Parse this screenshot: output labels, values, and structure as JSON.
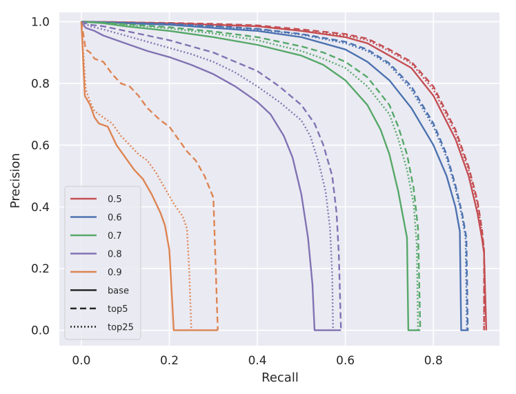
{
  "chart_data": {
    "type": "line",
    "title": "",
    "xlabel": "Recall",
    "ylabel": "Precision",
    "xlim": [
      -0.05,
      0.95
    ],
    "ylim": [
      -0.05,
      1.03
    ],
    "xticks": [
      "0.0",
      "0.2",
      "0.4",
      "0.6",
      "0.8"
    ],
    "yticks": [
      "0.0",
      "0.2",
      "0.4",
      "0.6",
      "0.8",
      "1.0"
    ],
    "grid": true,
    "legend_position": "lower-left",
    "legend": {
      "thresholds": [
        {
          "label": "0.5",
          "color": "#c44e52"
        },
        {
          "label": "0.6",
          "color": "#4c72b0"
        },
        {
          "label": "0.7",
          "color": "#55a868"
        },
        {
          "label": "0.8",
          "color": "#8172b3"
        },
        {
          "label": "0.9",
          "color": "#dd8452"
        }
      ],
      "styles": [
        {
          "label": "base",
          "dash": "solid"
        },
        {
          "label": "top5",
          "dash": "dashed"
        },
        {
          "label": "top25",
          "dash": "dotted"
        }
      ]
    },
    "series": [
      {
        "name": "0.5 base",
        "threshold": "0.5",
        "style": "base",
        "color": "#c44e52",
        "points": [
          [
            0.0,
            1.0
          ],
          [
            0.1,
            0.998
          ],
          [
            0.2,
            0.995
          ],
          [
            0.3,
            0.99
          ],
          [
            0.4,
            0.985
          ],
          [
            0.5,
            0.97
          ],
          [
            0.6,
            0.95
          ],
          [
            0.65,
            0.93
          ],
          [
            0.7,
            0.89
          ],
          [
            0.75,
            0.85
          ],
          [
            0.8,
            0.76
          ],
          [
            0.85,
            0.62
          ],
          [
            0.88,
            0.5
          ],
          [
            0.9,
            0.38
          ],
          [
            0.91,
            0.3
          ],
          [
            0.915,
            0.25
          ],
          [
            0.92,
            0.0
          ]
        ]
      },
      {
        "name": "0.5 top5",
        "threshold": "0.5",
        "style": "top5",
        "color": "#c44e52",
        "points": [
          [
            0.0,
            1.0
          ],
          [
            0.1,
            0.998
          ],
          [
            0.2,
            0.996
          ],
          [
            0.3,
            0.993
          ],
          [
            0.4,
            0.988
          ],
          [
            0.5,
            0.975
          ],
          [
            0.6,
            0.96
          ],
          [
            0.65,
            0.945
          ],
          [
            0.7,
            0.91
          ],
          [
            0.75,
            0.87
          ],
          [
            0.8,
            0.79
          ],
          [
            0.85,
            0.65
          ],
          [
            0.88,
            0.53
          ],
          [
            0.9,
            0.42
          ],
          [
            0.91,
            0.33
          ],
          [
            0.915,
            0.26
          ],
          [
            0.915,
            0.0
          ]
        ]
      },
      {
        "name": "0.5 top25",
        "threshold": "0.5",
        "style": "top25",
        "color": "#c44e52",
        "points": [
          [
            0.0,
            1.0
          ],
          [
            0.1,
            0.998
          ],
          [
            0.2,
            0.995
          ],
          [
            0.3,
            0.99
          ],
          [
            0.4,
            0.985
          ],
          [
            0.5,
            0.97
          ],
          [
            0.6,
            0.955
          ],
          [
            0.65,
            0.94
          ],
          [
            0.7,
            0.905
          ],
          [
            0.75,
            0.865
          ],
          [
            0.8,
            0.78
          ],
          [
            0.85,
            0.64
          ],
          [
            0.88,
            0.52
          ],
          [
            0.9,
            0.41
          ],
          [
            0.91,
            0.32
          ],
          [
            0.915,
            0.26
          ],
          [
            0.915,
            0.0
          ]
        ]
      },
      {
        "name": "0.6 base",
        "threshold": "0.6",
        "style": "base",
        "color": "#4c72b0",
        "points": [
          [
            0.0,
            1.0
          ],
          [
            0.1,
            0.995
          ],
          [
            0.2,
            0.99
          ],
          [
            0.3,
            0.98
          ],
          [
            0.4,
            0.97
          ],
          [
            0.5,
            0.95
          ],
          [
            0.6,
            0.91
          ],
          [
            0.65,
            0.87
          ],
          [
            0.7,
            0.81
          ],
          [
            0.75,
            0.72
          ],
          [
            0.8,
            0.6
          ],
          [
            0.83,
            0.5
          ],
          [
            0.85,
            0.4
          ],
          [
            0.86,
            0.32
          ],
          [
            0.863,
            0.0
          ],
          [
            0.88,
            0.0
          ]
        ]
      },
      {
        "name": "0.6 top5",
        "threshold": "0.6",
        "style": "top5",
        "color": "#4c72b0",
        "points": [
          [
            0.0,
            1.0
          ],
          [
            0.1,
            0.997
          ],
          [
            0.2,
            0.993
          ],
          [
            0.3,
            0.986
          ],
          [
            0.4,
            0.977
          ],
          [
            0.5,
            0.96
          ],
          [
            0.6,
            0.935
          ],
          [
            0.65,
            0.91
          ],
          [
            0.7,
            0.865
          ],
          [
            0.75,
            0.79
          ],
          [
            0.8,
            0.67
          ],
          [
            0.83,
            0.57
          ],
          [
            0.85,
            0.47
          ],
          [
            0.865,
            0.38
          ],
          [
            0.875,
            0.3
          ],
          [
            0.878,
            0.0
          ]
        ]
      },
      {
        "name": "0.6 top25",
        "threshold": "0.6",
        "style": "top25",
        "color": "#4c72b0",
        "points": [
          [
            0.0,
            1.0
          ],
          [
            0.1,
            0.996
          ],
          [
            0.2,
            0.992
          ],
          [
            0.3,
            0.984
          ],
          [
            0.4,
            0.975
          ],
          [
            0.5,
            0.958
          ],
          [
            0.6,
            0.93
          ],
          [
            0.65,
            0.905
          ],
          [
            0.7,
            0.86
          ],
          [
            0.75,
            0.78
          ],
          [
            0.8,
            0.66
          ],
          [
            0.83,
            0.56
          ],
          [
            0.85,
            0.46
          ],
          [
            0.865,
            0.37
          ],
          [
            0.873,
            0.3
          ],
          [
            0.876,
            0.0
          ]
        ]
      },
      {
        "name": "0.7 base",
        "threshold": "0.7",
        "style": "base",
        "color": "#55a868",
        "points": [
          [
            0.0,
            1.0
          ],
          [
            0.05,
            0.995
          ],
          [
            0.1,
            0.985
          ],
          [
            0.2,
            0.97
          ],
          [
            0.3,
            0.95
          ],
          [
            0.4,
            0.925
          ],
          [
            0.5,
            0.89
          ],
          [
            0.55,
            0.86
          ],
          [
            0.6,
            0.81
          ],
          [
            0.65,
            0.73
          ],
          [
            0.68,
            0.65
          ],
          [
            0.7,
            0.57
          ],
          [
            0.72,
            0.45
          ],
          [
            0.74,
            0.3
          ],
          [
            0.743,
            0.0
          ],
          [
            0.77,
            0.0
          ]
        ]
      },
      {
        "name": "0.7 top5",
        "threshold": "0.7",
        "style": "top5",
        "color": "#55a868",
        "points": [
          [
            0.0,
            1.0
          ],
          [
            0.05,
            0.997
          ],
          [
            0.1,
            0.992
          ],
          [
            0.2,
            0.982
          ],
          [
            0.3,
            0.968
          ],
          [
            0.4,
            0.95
          ],
          [
            0.5,
            0.92
          ],
          [
            0.55,
            0.9
          ],
          [
            0.6,
            0.87
          ],
          [
            0.65,
            0.82
          ],
          [
            0.7,
            0.73
          ],
          [
            0.72,
            0.66
          ],
          [
            0.74,
            0.57
          ],
          [
            0.755,
            0.46
          ],
          [
            0.765,
            0.33
          ],
          [
            0.77,
            0.0
          ]
        ]
      },
      {
        "name": "0.7 top25",
        "threshold": "0.7",
        "style": "top25",
        "color": "#55a868",
        "points": [
          [
            0.0,
            1.0
          ],
          [
            0.05,
            0.996
          ],
          [
            0.1,
            0.99
          ],
          [
            0.2,
            0.978
          ],
          [
            0.3,
            0.962
          ],
          [
            0.4,
            0.94
          ],
          [
            0.5,
            0.905
          ],
          [
            0.55,
            0.88
          ],
          [
            0.6,
            0.85
          ],
          [
            0.65,
            0.79
          ],
          [
            0.7,
            0.7
          ],
          [
            0.72,
            0.62
          ],
          [
            0.74,
            0.52
          ],
          [
            0.755,
            0.41
          ],
          [
            0.762,
            0.28
          ],
          [
            0.765,
            0.0
          ]
        ]
      },
      {
        "name": "0.8 base",
        "threshold": "0.8",
        "style": "base",
        "color": "#8172b3",
        "points": [
          [
            0.0,
            1.0
          ],
          [
            0.01,
            0.98
          ],
          [
            0.03,
            0.97
          ],
          [
            0.05,
            0.955
          ],
          [
            0.1,
            0.93
          ],
          [
            0.15,
            0.905
          ],
          [
            0.2,
            0.885
          ],
          [
            0.25,
            0.86
          ],
          [
            0.3,
            0.83
          ],
          [
            0.35,
            0.79
          ],
          [
            0.4,
            0.74
          ],
          [
            0.43,
            0.7
          ],
          [
            0.46,
            0.63
          ],
          [
            0.48,
            0.56
          ],
          [
            0.5,
            0.44
          ],
          [
            0.515,
            0.3
          ],
          [
            0.525,
            0.15
          ],
          [
            0.53,
            0.0
          ],
          [
            0.59,
            0.0
          ]
        ]
      },
      {
        "name": "0.8 top5",
        "threshold": "0.8",
        "style": "top5",
        "color": "#8172b3",
        "points": [
          [
            0.0,
            1.0
          ],
          [
            0.02,
            0.99
          ],
          [
            0.05,
            0.985
          ],
          [
            0.1,
            0.97
          ],
          [
            0.15,
            0.955
          ],
          [
            0.2,
            0.94
          ],
          [
            0.25,
            0.92
          ],
          [
            0.3,
            0.9
          ],
          [
            0.35,
            0.87
          ],
          [
            0.4,
            0.84
          ],
          [
            0.45,
            0.79
          ],
          [
            0.5,
            0.73
          ],
          [
            0.53,
            0.67
          ],
          [
            0.55,
            0.6
          ],
          [
            0.57,
            0.5
          ],
          [
            0.58,
            0.38
          ],
          [
            0.585,
            0.25
          ],
          [
            0.59,
            0.0
          ]
        ]
      },
      {
        "name": "0.8 top25",
        "threshold": "0.8",
        "style": "top25",
        "color": "#8172b3",
        "points": [
          [
            0.0,
            1.0
          ],
          [
            0.02,
            0.985
          ],
          [
            0.05,
            0.975
          ],
          [
            0.1,
            0.955
          ],
          [
            0.15,
            0.935
          ],
          [
            0.2,
            0.915
          ],
          [
            0.25,
            0.895
          ],
          [
            0.3,
            0.87
          ],
          [
            0.35,
            0.835
          ],
          [
            0.4,
            0.79
          ],
          [
            0.45,
            0.74
          ],
          [
            0.5,
            0.68
          ],
          [
            0.52,
            0.63
          ],
          [
            0.54,
            0.54
          ],
          [
            0.555,
            0.45
          ],
          [
            0.565,
            0.33
          ],
          [
            0.57,
            0.18
          ],
          [
            0.572,
            0.0
          ]
        ]
      },
      {
        "name": "0.9 base",
        "threshold": "0.9",
        "style": "base",
        "color": "#dd8452",
        "points": [
          [
            0.0,
            1.0
          ],
          [
            0.008,
            0.76
          ],
          [
            0.02,
            0.73
          ],
          [
            0.03,
            0.69
          ],
          [
            0.04,
            0.67
          ],
          [
            0.06,
            0.66
          ],
          [
            0.08,
            0.6
          ],
          [
            0.1,
            0.56
          ],
          [
            0.12,
            0.52
          ],
          [
            0.14,
            0.49
          ],
          [
            0.16,
            0.44
          ],
          [
            0.18,
            0.38
          ],
          [
            0.19,
            0.34
          ],
          [
            0.2,
            0.26
          ],
          [
            0.21,
            0.0
          ],
          [
            0.31,
            0.0
          ]
        ]
      },
      {
        "name": "0.9 top5",
        "threshold": "0.9",
        "style": "top5",
        "color": "#dd8452",
        "points": [
          [
            0.0,
            1.0
          ],
          [
            0.01,
            0.91
          ],
          [
            0.02,
            0.9
          ],
          [
            0.03,
            0.88
          ],
          [
            0.05,
            0.87
          ],
          [
            0.07,
            0.83
          ],
          [
            0.09,
            0.8
          ],
          [
            0.11,
            0.79
          ],
          [
            0.13,
            0.76
          ],
          [
            0.15,
            0.72
          ],
          [
            0.18,
            0.68
          ],
          [
            0.2,
            0.66
          ],
          [
            0.22,
            0.62
          ],
          [
            0.24,
            0.58
          ],
          [
            0.26,
            0.55
          ],
          [
            0.28,
            0.5
          ],
          [
            0.3,
            0.43
          ],
          [
            0.31,
            0.0
          ]
        ]
      },
      {
        "name": "0.9 top25",
        "threshold": "0.9",
        "style": "top25",
        "color": "#dd8452",
        "points": [
          [
            0.0,
            1.0
          ],
          [
            0.01,
            0.78
          ],
          [
            0.02,
            0.74
          ],
          [
            0.03,
            0.71
          ],
          [
            0.05,
            0.69
          ],
          [
            0.07,
            0.67
          ],
          [
            0.09,
            0.63
          ],
          [
            0.11,
            0.6
          ],
          [
            0.13,
            0.57
          ],
          [
            0.15,
            0.55
          ],
          [
            0.17,
            0.51
          ],
          [
            0.19,
            0.46
          ],
          [
            0.21,
            0.41
          ],
          [
            0.23,
            0.37
          ],
          [
            0.24,
            0.33
          ],
          [
            0.245,
            0.2
          ],
          [
            0.25,
            0.0
          ]
        ]
      }
    ]
  }
}
